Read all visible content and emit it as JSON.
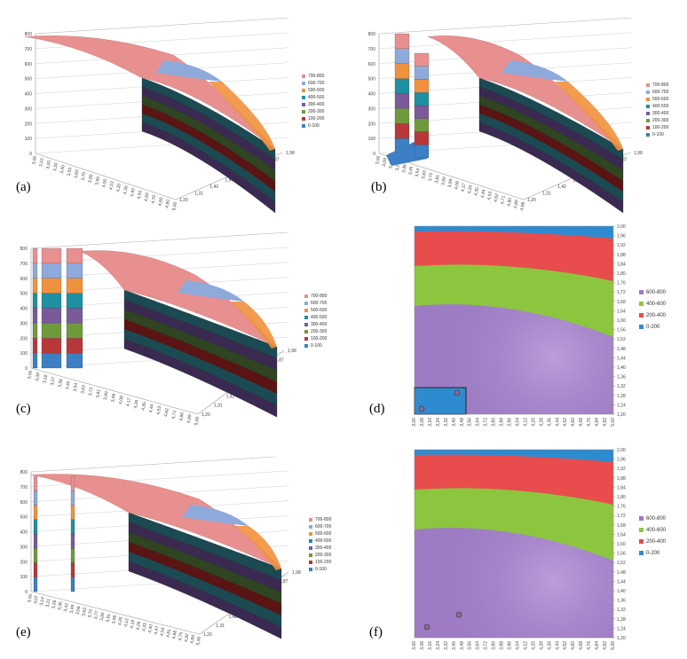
{
  "colors": {
    "c700_800": "#e8908f",
    "c600_700": "#8eaadb",
    "c500_600": "#f0913d",
    "c400_500": "#1f8fa2",
    "c300_400": "#7a5a9a",
    "c200_300": "#6f9a3c",
    "c100_200": "#b8383a",
    "c0_100": "#3c7fc4",
    "c_dark_teal": "#1b4a52",
    "c_dark_purple": "#3a2a52",
    "c_dark_green": "#2f4420",
    "c_dark_red": "#5a1414",
    "h600_800": "#9d7cc4",
    "h400_600": "#8cc63f",
    "h200_400": "#e84c4c",
    "h0_200": "#2f8bd0"
  },
  "legend3d": [
    "700-800",
    "600-700",
    "500-600",
    "400-500",
    "300-400",
    "200-300",
    "100-200",
    "0-100"
  ],
  "legend2d": [
    "600-800",
    "400-600",
    "200-400",
    "0-200"
  ],
  "z_ticks": [
    "800",
    "700",
    "600",
    "500",
    "400",
    "300",
    "200",
    "100",
    "0"
  ],
  "panel_labels": {
    "a": "(a)",
    "b": "(b)",
    "c": "(c)",
    "d": "(d)",
    "e": "(e)",
    "f": "(f)"
  },
  "chart_data": [
    {
      "type": "surface3d",
      "panel": "(a)",
      "zlim": [
        0,
        800
      ],
      "z_ticks": [
        0,
        100,
        200,
        300,
        400,
        500,
        600,
        700,
        800
      ],
      "x_ticks": [
        "3,00",
        "3,10",
        "3,20",
        "3,30",
        "3,40",
        "3,50",
        "3,60",
        "3,70",
        "3,80",
        "3,90",
        "4,00",
        "4,10",
        "4,20",
        "4,30",
        "4,40",
        "4,50",
        "4,60",
        "4,70",
        "4,80",
        "4,90",
        "5,00"
      ],
      "y_ticks": [
        "1,20",
        "1,31",
        "1,42",
        "1,54",
        "1,65",
        "1,76",
        "1,87",
        "1,98"
      ],
      "legend": [
        "700-800",
        "600-700",
        "500-600",
        "400-500",
        "300-400",
        "200-300",
        "100-200",
        "0-100"
      ],
      "grid": true,
      "legend_position": "right"
    },
    {
      "type": "surface3d",
      "panel": "(b)",
      "zlim": [
        0,
        800
      ],
      "z_ticks": [
        0,
        100,
        200,
        300,
        400,
        500,
        600,
        700,
        800
      ],
      "x_ticks": [
        "3,00",
        "3,09",
        "3,18",
        "3,27",
        "3,36",
        "3,45",
        "3,54",
        "3,63",
        "3,72",
        "3,81",
        "3,90",
        "3,99",
        "4,08",
        "4,17",
        "4,26",
        "4,35",
        "4,44",
        "4,53",
        "4,62",
        "4,71",
        "4,80",
        "4,89",
        "4,98"
      ],
      "y_ticks": [
        "1,20",
        "1,31",
        "1,42",
        "1,54",
        "1,65",
        "1,76",
        "1,87",
        "1,98"
      ],
      "legend": [
        "700-800",
        "600-700",
        "500-600",
        "400-500",
        "300-400",
        "200-300",
        "100-200",
        "0-100"
      ],
      "grid": true,
      "legend_position": "right"
    },
    {
      "type": "surface3d",
      "panel": "(c)",
      "zlim": [
        0,
        800
      ],
      "z_ticks": [
        0,
        100,
        200,
        300,
        400,
        500,
        600,
        700,
        800
      ],
      "x_ticks": [
        "3,00",
        "3,09",
        "3,18",
        "3,27",
        "3,36",
        "3,45",
        "3,54",
        "3,63",
        "3,72",
        "3,81",
        "3,90",
        "3,99",
        "4,08",
        "4,17",
        "4,26",
        "4,35",
        "4,44",
        "4,53",
        "4,62",
        "4,71",
        "4,80",
        "4,89",
        "5,00"
      ],
      "y_ticks": [
        "1,20",
        "1,31",
        "1,42",
        "1,54",
        "1,65",
        "1,76",
        "1,87",
        "1,98"
      ],
      "legend": [
        "700-800",
        "600-700",
        "500-600",
        "400-500",
        "300-400",
        "200-300",
        "100-200",
        "0-100"
      ],
      "grid": true,
      "legend_position": "right"
    },
    {
      "type": "heatmap",
      "panel": "(d)",
      "x_ticks": [
        "3,00",
        "3,08",
        "3,16",
        "3,24",
        "3,32",
        "3,40",
        "3,48",
        "3,56",
        "3,64",
        "3,72",
        "3,80",
        "3,88",
        "3,96",
        "4,04",
        "4,12",
        "4,20",
        "4,28",
        "4,36",
        "4,44",
        "4,52",
        "4,60",
        "4,68",
        "4,76",
        "4,84",
        "4,92",
        "5,00"
      ],
      "y_ticks": [
        "2,00",
        "1,96",
        "1,92",
        "1,88",
        "1,84",
        "1,80",
        "1,76",
        "1,72",
        "1,68",
        "1,64",
        "1,60",
        "1,56",
        "1,52",
        "1,48",
        "1,44",
        "1,40",
        "1,36",
        "1,32",
        "1,28",
        "1,24",
        "1,20"
      ],
      "legend": [
        "600-800",
        "400-600",
        "200-400",
        "0-200"
      ],
      "legend_position": "right"
    },
    {
      "type": "surface3d",
      "panel": "(e)",
      "zlim": [
        0,
        800
      ],
      "z_ticks": [
        0,
        100,
        200,
        300,
        400,
        500,
        600,
        700,
        800
      ],
      "x_ticks": [
        "3,00",
        "3,07",
        "3,14",
        "3,21",
        "3,28",
        "3,35",
        "3,42",
        "3,49",
        "3,56",
        "3,63",
        "3,70",
        "3,77",
        "3,84",
        "3,91",
        "3,98",
        "4,05",
        "4,12",
        "4,19",
        "4,26",
        "4,33",
        "4,40",
        "4,47",
        "4,54",
        "4,61",
        "4,68",
        "4,75",
        "4,82",
        "4,89",
        "5,00"
      ],
      "y_ticks": [
        "1,20",
        "1,31",
        "1,42",
        "1,54",
        "1,65",
        "1,76",
        "1,87",
        "1,98"
      ],
      "legend": [
        "700-800",
        "600-700",
        "500-600",
        "400-500",
        "300-400",
        "200-300",
        "100-200",
        "0-100"
      ],
      "grid": true,
      "legend_position": "right"
    },
    {
      "type": "heatmap",
      "panel": "(f)",
      "x_ticks": [
        "3,00",
        "3,08",
        "3,16",
        "3,24",
        "3,32",
        "3,40",
        "3,48",
        "3,56",
        "3,64",
        "3,72",
        "3,80",
        "3,88",
        "3,96",
        "4,04",
        "4,12",
        "4,20",
        "4,28",
        "4,36",
        "4,44",
        "4,52",
        "4,60",
        "4,68",
        "4,76",
        "4,84",
        "4,92",
        "5,00"
      ],
      "y_ticks": [
        "2,00",
        "1,96",
        "1,92",
        "1,88",
        "1,84",
        "1,80",
        "1,76",
        "1,72",
        "1,68",
        "1,64",
        "1,60",
        "1,56",
        "1,52",
        "1,48",
        "1,44",
        "1,40",
        "1,36",
        "1,32",
        "1,28",
        "1,24",
        "1,20"
      ],
      "legend": [
        "600-800",
        "400-600",
        "200-400",
        "0-200"
      ],
      "legend_position": "right"
    }
  ]
}
